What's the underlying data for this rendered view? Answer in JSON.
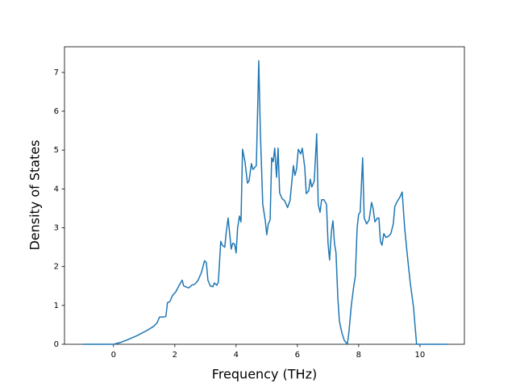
{
  "chart_data": {
    "type": "line",
    "xlabel": "Frequency (THz)",
    "ylabel": "Density of States",
    "x": [
      -1.0,
      0.0,
      0.24,
      0.5,
      0.76,
      1.03,
      1.29,
      1.42,
      1.5,
      1.63,
      1.71,
      1.76,
      1.84,
      1.92,
      2.03,
      2.13,
      2.24,
      2.29,
      2.45,
      2.55,
      2.66,
      2.76,
      2.87,
      2.97,
      3.03,
      3.08,
      3.16,
      3.24,
      3.29,
      3.37,
      3.42,
      3.5,
      3.55,
      3.63,
      3.68,
      3.74,
      3.79,
      3.84,
      3.89,
      3.95,
      4.0,
      4.05,
      4.11,
      4.16,
      4.21,
      4.29,
      4.37,
      4.42,
      4.5,
      4.55,
      4.66,
      4.74,
      4.79,
      4.87,
      4.95,
      5.0,
      5.05,
      5.11,
      5.16,
      5.21,
      5.26,
      5.32,
      5.37,
      5.42,
      5.5,
      5.58,
      5.68,
      5.76,
      5.82,
      5.87,
      5.92,
      5.97,
      6.03,
      6.11,
      6.16,
      6.24,
      6.29,
      6.37,
      6.42,
      6.47,
      6.55,
      6.63,
      6.68,
      6.74,
      6.79,
      6.87,
      6.95,
      7.0,
      7.05,
      7.11,
      7.16,
      7.21,
      7.26,
      7.32,
      7.37,
      7.45,
      7.53,
      7.63,
      7.68,
      7.76,
      7.84,
      7.89,
      7.95,
      8.0,
      8.05,
      8.13,
      8.18,
      8.26,
      8.34,
      8.42,
      8.47,
      8.53,
      8.61,
      8.66,
      8.71,
      8.76,
      8.82,
      8.89,
      8.97,
      9.05,
      9.13,
      9.18,
      9.26,
      9.34,
      9.42,
      9.5,
      9.58,
      9.68,
      9.79,
      9.89,
      9.97,
      10.89
    ],
    "values": [
      0,
      0,
      0.05,
      0.13,
      0.22,
      0.33,
      0.45,
      0.55,
      0.7,
      0.7,
      0.72,
      1.07,
      1.1,
      1.25,
      1.35,
      1.5,
      1.65,
      1.5,
      1.45,
      1.52,
      1.55,
      1.65,
      1.85,
      2.15,
      2.1,
      1.65,
      1.5,
      1.48,
      1.58,
      1.52,
      1.6,
      2.65,
      2.55,
      2.5,
      2.9,
      3.25,
      2.85,
      2.45,
      2.6,
      2.58,
      2.35,
      3.0,
      3.3,
      3.15,
      5.02,
      4.7,
      4.15,
      4.2,
      4.65,
      4.5,
      4.6,
      7.3,
      5.5,
      3.6,
      3.2,
      2.82,
      3.1,
      3.2,
      4.8,
      4.7,
      5.05,
      4.3,
      5.05,
      3.9,
      3.75,
      3.7,
      3.52,
      3.7,
      4.2,
      4.6,
      4.35,
      4.5,
      5.02,
      4.9,
      5.05,
      4.55,
      3.88,
      3.95,
      4.25,
      4.05,
      4.2,
      5.42,
      3.6,
      3.4,
      3.72,
      3.72,
      3.6,
      2.6,
      2.17,
      2.9,
      3.18,
      2.6,
      2.35,
      1.2,
      0.6,
      0.3,
      0.1,
      0,
      0.3,
      1.0,
      1.5,
      1.75,
      3.0,
      3.35,
      3.4,
      4.8,
      3.25,
      3.1,
      3.2,
      3.65,
      3.5,
      3.15,
      3.25,
      3.25,
      2.65,
      2.55,
      2.85,
      2.75,
      2.78,
      2.85,
      3.1,
      3.55,
      3.68,
      3.78,
      3.92,
      3.0,
      2.35,
      1.6,
      0.95,
      0,
      0,
      0
    ],
    "color": "#1f77b4",
    "xlim": [
      -1.6,
      11.45
    ],
    "xticks": [
      0,
      2,
      4,
      6,
      8,
      10
    ],
    "ylim": [
      0,
      7.66
    ],
    "yticks": [
      0,
      1,
      2,
      3,
      4,
      5,
      6,
      7
    ]
  }
}
